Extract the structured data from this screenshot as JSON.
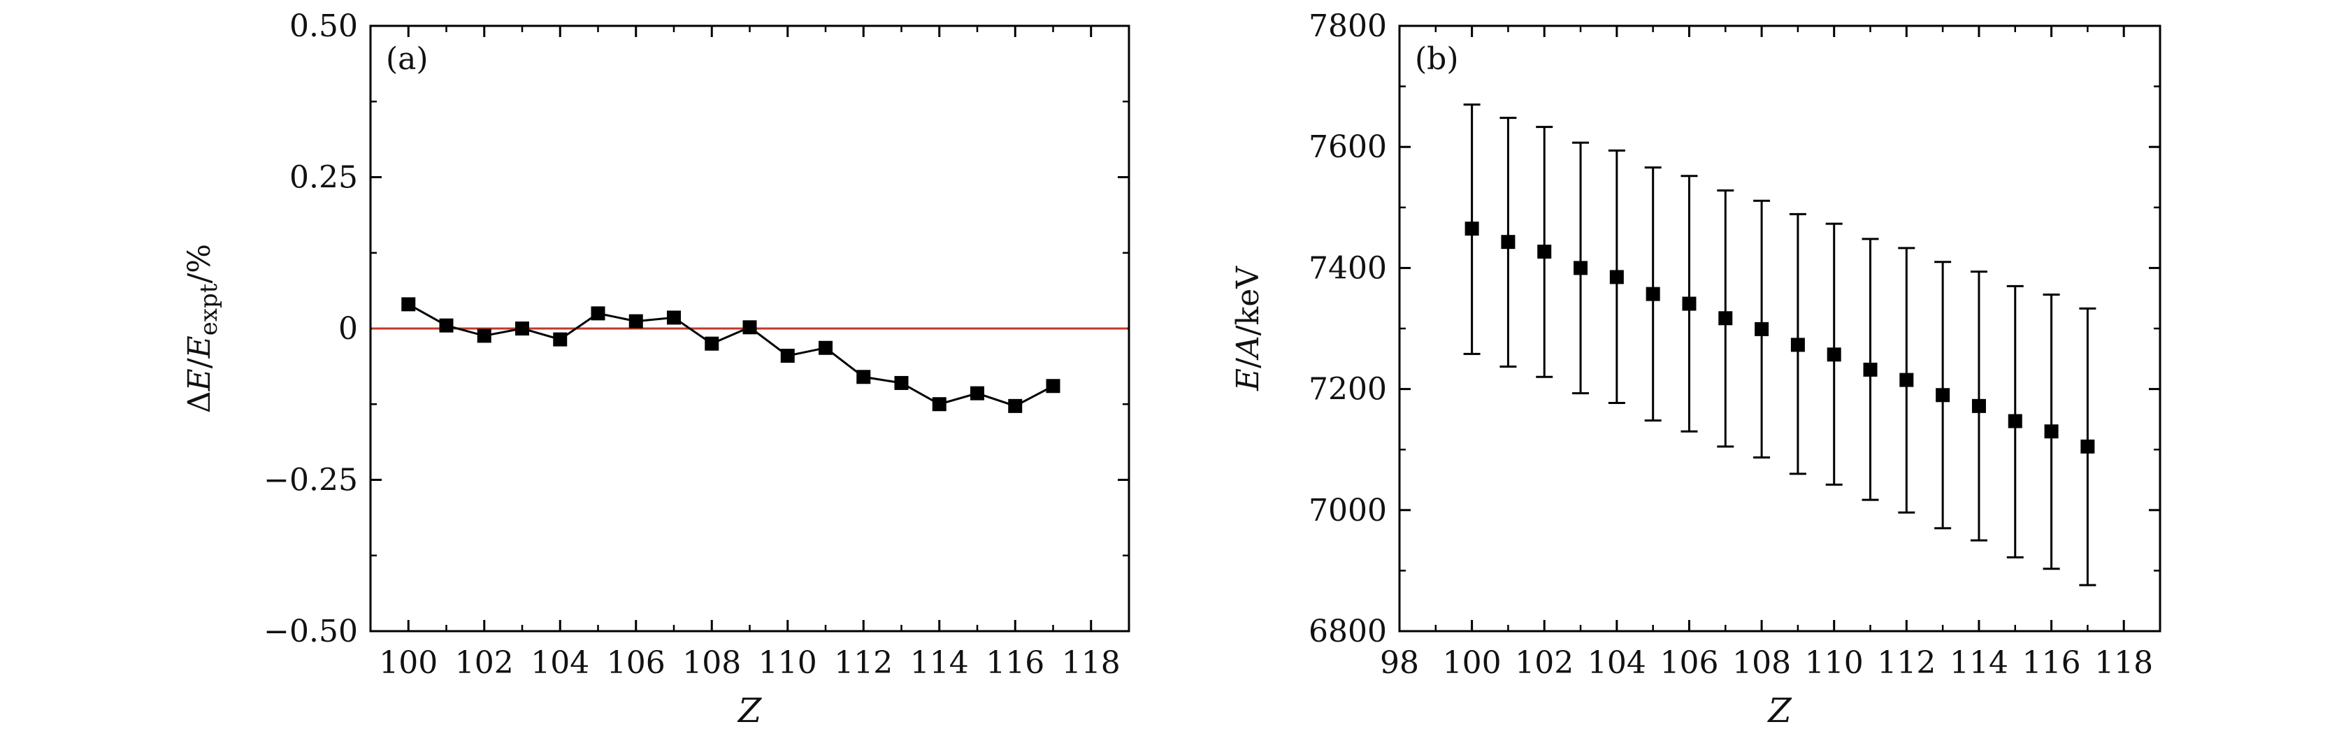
{
  "chart_data": [
    {
      "panel": "(a)",
      "type": "line",
      "xlabel": "Z",
      "ylabel_parts": {
        "delta": "ΔE",
        "slash": "/",
        "E": "E",
        "sub": "expt",
        "unit": "/%"
      },
      "xlim": [
        99,
        119
      ],
      "ylim": [
        -0.5,
        0.5
      ],
      "xticks": [
        100,
        102,
        104,
        106,
        108,
        110,
        112,
        114,
        116,
        118
      ],
      "yticks": [
        0.5,
        0.25,
        0,
        -0.25,
        -0.5
      ],
      "ytick_labels": [
        "0.50",
        "0.25",
        "0",
        "−0.25",
        "−0.50"
      ],
      "reference_line": {
        "y": 0,
        "color": "#c0392b"
      },
      "series": [
        {
          "marker": "square",
          "color": "#000000",
          "x": [
            100,
            101,
            102,
            103,
            104,
            105,
            106,
            107,
            108,
            109,
            110,
            111,
            112,
            113,
            114,
            115,
            116,
            117
          ],
          "y": [
            0.04,
            0.005,
            -0.012,
            0.0,
            -0.018,
            0.025,
            0.012,
            0.018,
            -0.025,
            0.002,
            -0.045,
            -0.032,
            -0.08,
            -0.09,
            -0.125,
            -0.107,
            -0.128,
            -0.095
          ]
        }
      ]
    },
    {
      "panel": "(b)",
      "type": "scatter",
      "xlabel": "Z",
      "ylabel": "E/A/keV",
      "xlim": [
        98,
        119
      ],
      "ylim": [
        6800,
        7800
      ],
      "xticks": [
        98,
        100,
        102,
        104,
        106,
        108,
        110,
        112,
        114,
        116,
        118
      ],
      "yticks": [
        7800,
        7600,
        7400,
        7200,
        7000,
        6800
      ],
      "series": [
        {
          "marker": "square",
          "color": "#000000",
          "x": [
            100,
            101,
            102,
            103,
            104,
            105,
            106,
            107,
            108,
            109,
            110,
            111,
            112,
            113,
            114,
            115,
            116,
            117
          ],
          "y": [
            7465,
            7443,
            7427,
            7400,
            7385,
            7357,
            7341,
            7317,
            7299,
            7273,
            7257,
            7232,
            7215,
            7190,
            7172,
            7147,
            7130,
            7105
          ],
          "err_high": [
            7670,
            7648,
            7633,
            7607,
            7594,
            7566,
            7552,
            7528,
            7511,
            7489,
            7473,
            7448,
            7433,
            7410,
            7394,
            7370,
            7356,
            7333
          ],
          "err_low": [
            7258,
            7237,
            7220,
            7193,
            7177,
            7148,
            7130,
            7105,
            7087,
            7060,
            7042,
            7017,
            6996,
            6970,
            6950,
            6922,
            6903,
            6876
          ]
        }
      ]
    }
  ]
}
